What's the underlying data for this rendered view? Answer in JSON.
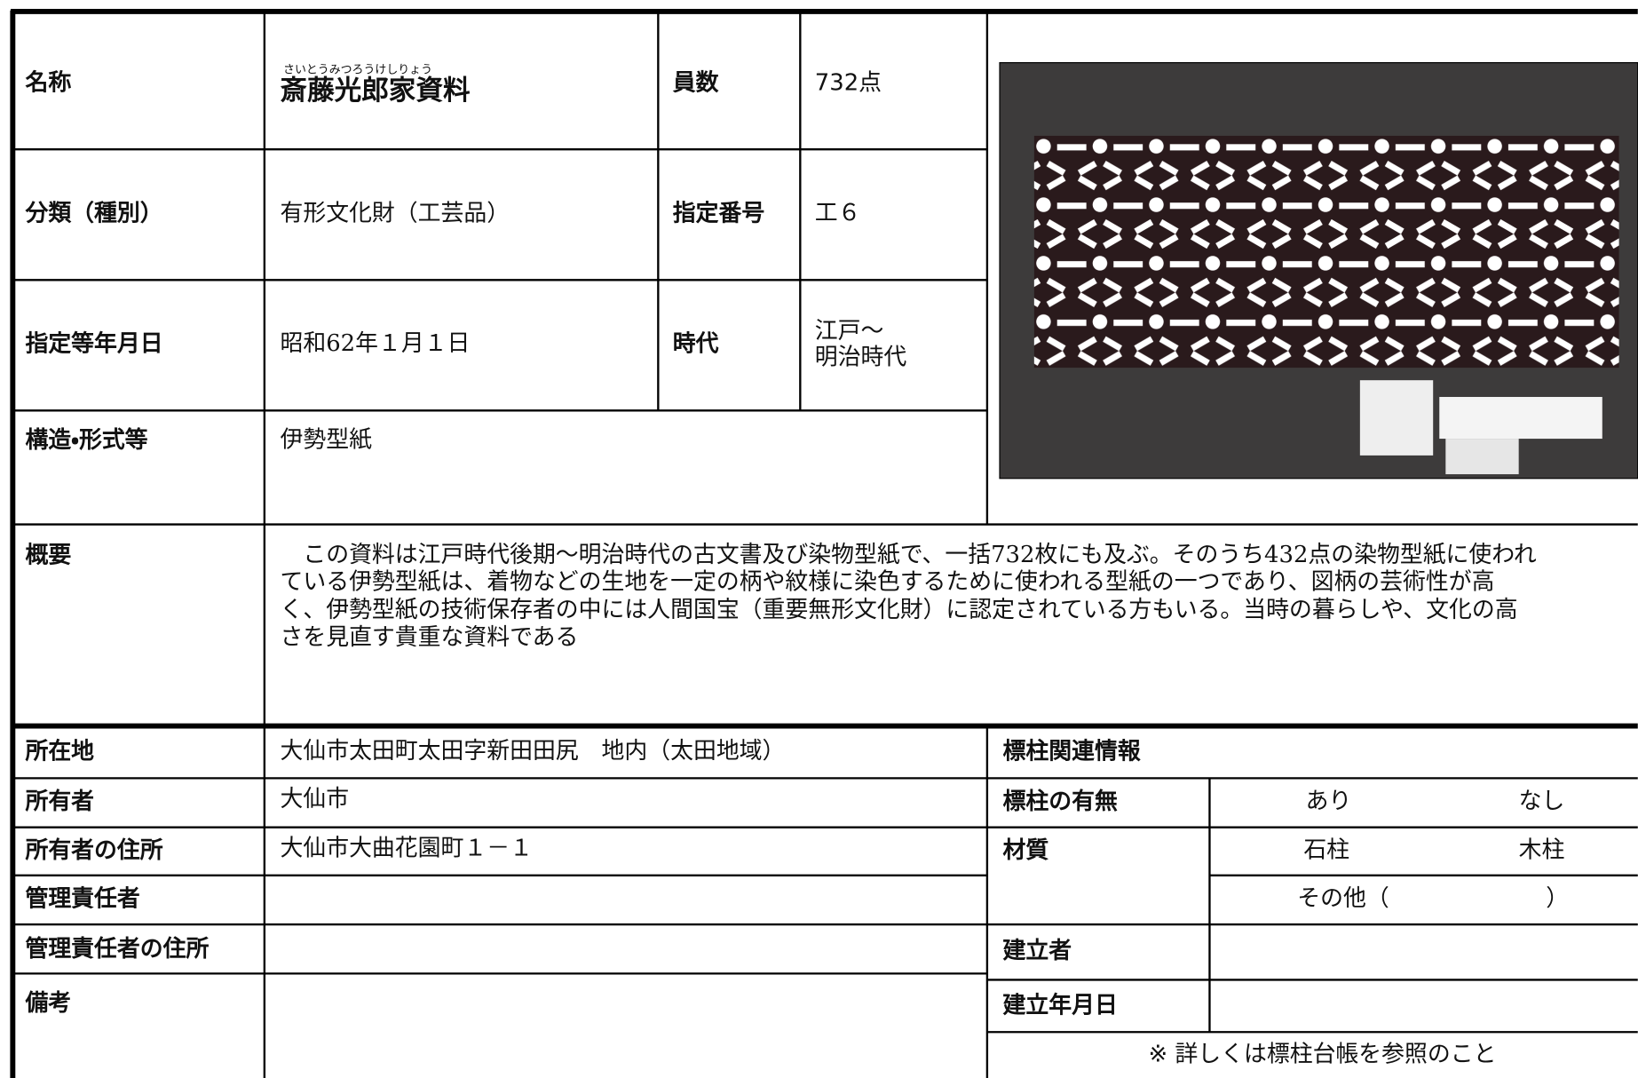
{
  "name": {
    "label": "名称",
    "furigana": "さいとうみつろうけしりょう",
    "value": "斎藤光郎家資料"
  },
  "count": {
    "label": "員数",
    "value": "732点"
  },
  "category": {
    "label": "分類（種別）",
    "value": "有形文化財（工芸品）"
  },
  "designation_number": {
    "label": "指定番号",
    "value": "工６"
  },
  "designation_date": {
    "label": "指定等年月日",
    "value": "昭和62年１月１日"
  },
  "period": {
    "label": "時代",
    "value": [
      "江戸～",
      "明治時代"
    ]
  },
  "structure": {
    "label": "構造・形式等",
    "value": "伊勢型紙"
  },
  "overview": {
    "label": "概要",
    "lines": [
      "　この資料は江戸時代後期～明治時代の古文書及び染物型紙で、一括732枚にも及ぶ。そのうち432点の染物型紙に使われ",
      "ている伊勢型紙は、着物などの生地を一定の柄や紋様に染色するために使われる型紙の一つであり、図柄の芸術性が高",
      "く、伊勢型紙の技術保存者の中には人間国宝（重要無形文化財）に認定されている方もいる。当時の暮らしや、文化の高",
      "さを見直す貴重な資料である"
    ]
  },
  "location": {
    "label": "所在地",
    "value": "大仙市太田町太田字新田田尻　地内（太田地域）"
  },
  "owner": {
    "label": "所有者",
    "value": "大仙市"
  },
  "owner_address": {
    "label": "所有者の住所",
    "value": "大仙市大曲花園町１－１"
  },
  "manager": {
    "label": "管理責任者"
  },
  "manager_address": {
    "label": "管理責任者の住所"
  },
  "remarks": {
    "label": "備考"
  },
  "marker": {
    "title": "標柱関連情報",
    "presence": {
      "label": "標柱の有無",
      "options": [
        "あり",
        "なし"
      ]
    },
    "material": {
      "label": "材質",
      "options": [
        "石柱",
        "木柱"
      ],
      "other": [
        "その他（",
        "）"
      ]
    },
    "builder": {
      "label": "建立者"
    },
    "build_date": {
      "label": "建立年月日"
    },
    "note": "※ 詳しくは標柱台帳を参照のこと"
  }
}
